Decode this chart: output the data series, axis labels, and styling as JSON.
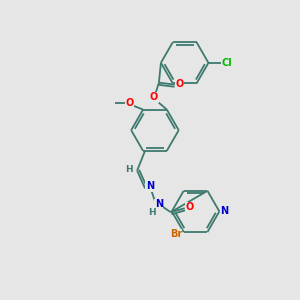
{
  "bg": "#e6e6e6",
  "bond_color": "#3d7a6e",
  "atom_colors": {
    "O": "#ff0000",
    "N": "#0000cc",
    "Cl": "#00bb00",
    "Br": "#cc6600",
    "C": "#3d7a6e",
    "H": "#3d7a6e"
  },
  "lw": 1.3,
  "fs": 6.5
}
